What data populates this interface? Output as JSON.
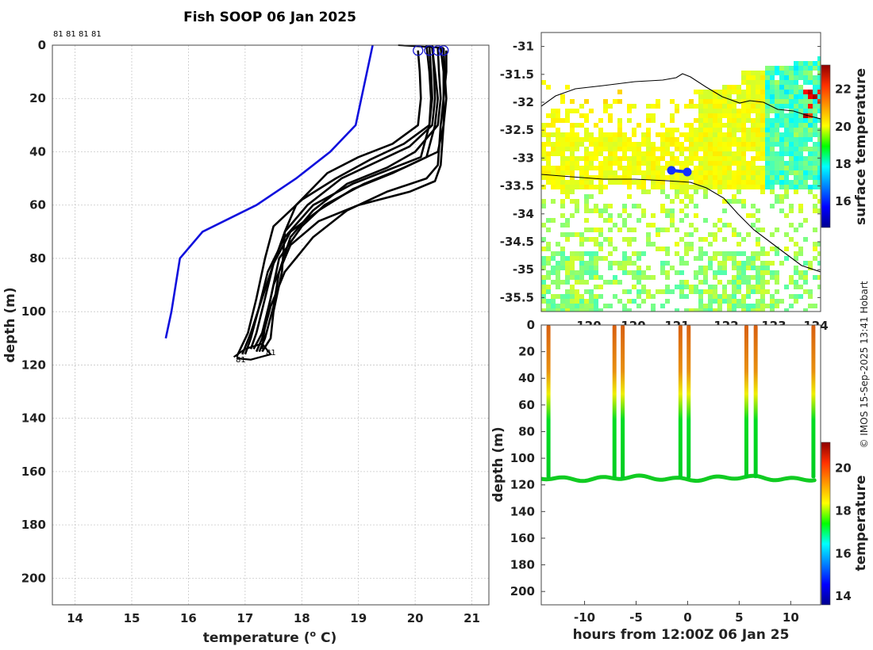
{
  "title": "Fish SOOP 06 Jan 2025",
  "credit": "© IMOS 15-Sep-2025 13:41 Hobart",
  "chart_data": [
    {
      "id": "profiles",
      "type": "line",
      "xlabel": "temperature (° C)",
      "xlabel_main": "temperature (",
      "xlabel_sup": "o",
      "xlabel_end": " C)",
      "ylabel": "depth (m)",
      "xlim": [
        13.6,
        21.3
      ],
      "ylim": [
        210,
        0
      ],
      "xticks": [
        "14",
        "15",
        "16",
        "17",
        "18",
        "19",
        "20",
        "21"
      ],
      "yticks": [
        "0",
        "20",
        "40",
        "60",
        "80",
        "100",
        "120",
        "140",
        "160",
        "180",
        "200"
      ],
      "grid": true,
      "top_labels": [
        "81",
        "81",
        "81",
        "81"
      ],
      "end_labels": [
        "81",
        "81"
      ],
      "climatology": {
        "name": "climatology",
        "color": "#1010dd",
        "temp": [
          19.25,
          19.15,
          19.05,
          18.95,
          18.5,
          17.9,
          17.2,
          16.25,
          15.85,
          15.7,
          15.6
        ],
        "depth": [
          0,
          10,
          20,
          30,
          40,
          50,
          60,
          70,
          80,
          100,
          110
        ]
      },
      "profiles": [
        {
          "temp": [
            20.05,
            20.08,
            20.1,
            20.05,
            19.6,
            19.0,
            18.45,
            17.9,
            17.7,
            17.65,
            17.5,
            17.45,
            17.3
          ],
          "depth": [
            2,
            10,
            20,
            30,
            37,
            42,
            48,
            60,
            70,
            85,
            100,
            110,
            115
          ]
        },
        {
          "temp": [
            20.3,
            20.33,
            20.35,
            20.3,
            19.9,
            19.3,
            18.7,
            18.1,
            17.7,
            17.5,
            17.35,
            17.2,
            17.1
          ],
          "depth": [
            0,
            10,
            20,
            30,
            38,
            44,
            50,
            60,
            70,
            82,
            95,
            108,
            114
          ]
        },
        {
          "temp": [
            20.4,
            20.42,
            20.45,
            20.4,
            20.0,
            19.5,
            18.8,
            18.2,
            17.8,
            17.6,
            17.5,
            17.35,
            17.25
          ],
          "depth": [
            1,
            10,
            20,
            30,
            40,
            46,
            52,
            62,
            72,
            85,
            98,
            110,
            115
          ]
        },
        {
          "temp": [
            20.5,
            20.52,
            20.55,
            20.5,
            20.4,
            19.8,
            19.1,
            18.4,
            18.0,
            17.6,
            17.45,
            17.3,
            17.15
          ],
          "depth": [
            1,
            10,
            20,
            30,
            40,
            46,
            52,
            60,
            68,
            80,
            95,
            108,
            114
          ]
        },
        {
          "temp": [
            20.25,
            20.28,
            20.3,
            20.25,
            19.8,
            19.2,
            18.6,
            18.0,
            17.5,
            17.35,
            17.2,
            17.05,
            16.85
          ],
          "depth": [
            0,
            10,
            20,
            30,
            37,
            43,
            50,
            58,
            68,
            80,
            95,
            108,
            117
          ]
        },
        {
          "temp": [
            20.3,
            20.35,
            20.4,
            20.35,
            20.2,
            19.6,
            18.9,
            18.3,
            17.8,
            17.5,
            17.3,
            17.1,
            16.95
          ],
          "depth": [
            1,
            10,
            20,
            30,
            42,
            48,
            54,
            62,
            70,
            82,
            95,
            108,
            116
          ]
        },
        {
          "temp": [
            20.45,
            20.5,
            20.5,
            20.45,
            20.4,
            20.2,
            19.5,
            18.8,
            18.2,
            17.7,
            17.45,
            17.3,
            17.2
          ],
          "depth": [
            1,
            10,
            20,
            30,
            45,
            50,
            55,
            62,
            72,
            85,
            98,
            110,
            115
          ]
        },
        {
          "temp": [
            20.2,
            20.25,
            20.28,
            20.25,
            20.1,
            19.5,
            18.9,
            18.2,
            17.7,
            17.4,
            17.25,
            17.1,
            17.0
          ],
          "depth": [
            0,
            10,
            20,
            30,
            42,
            47,
            52,
            60,
            72,
            85,
            98,
            110,
            116
          ]
        },
        {
          "temp": [
            20.55,
            20.55,
            20.5,
            20.5,
            20.45,
            20.35,
            19.9,
            19.0,
            18.3,
            17.8,
            17.5,
            17.35,
            17.3
          ],
          "depth": [
            2,
            10,
            20,
            30,
            45,
            51,
            55,
            60,
            66,
            75,
            90,
            105,
            114
          ]
        }
      ],
      "surface_markers_temp": [
        20.05,
        20.25,
        20.4,
        20.5
      ]
    },
    {
      "id": "map",
      "type": "heatmap",
      "ylim": [
        -35.75,
        -30.75
      ],
      "yticks": [
        "-31",
        "-31.5",
        "-32",
        "-32.5",
        "-33",
        "-33.5",
        "-34",
        "-34.5",
        "-35",
        "-35.5"
      ],
      "xticks": [
        "120",
        "120",
        "121",
        "122",
        "123",
        "124"
      ],
      "colorbar": {
        "label": "surface temperature",
        "min": 14.6,
        "max": 23.3,
        "ticks": [
          "16",
          "18",
          "20",
          "22"
        ]
      },
      "track": {
        "lon": [
          120.85,
          121.1
        ],
        "lat": [
          -33.22,
          -33.25
        ],
        "color": "#1030ff"
      }
    },
    {
      "id": "section",
      "type": "scatter",
      "xlabel": "hours from 12:00Z 06 Jan 25",
      "ylabel": "depth (m)",
      "xlim": [
        -14.2,
        12.9
      ],
      "ylim": [
        210,
        0
      ],
      "xticks": [
        "-10",
        "-5",
        "0",
        "5",
        "10"
      ],
      "yticks": [
        "0",
        "20",
        "40",
        "60",
        "80",
        "100",
        "120",
        "140",
        "160",
        "180",
        "200"
      ],
      "profile_hours": [
        -13.5,
        -7.1,
        -6.3,
        -0.7,
        0.1,
        5.7,
        6.6,
        12.2
      ],
      "bottom_depth_m": 115,
      "colorbar": {
        "label": "temperature",
        "min": 13.6,
        "max": 21.2,
        "ticks": [
          "14",
          "16",
          "18",
          "20"
        ]
      }
    }
  ]
}
